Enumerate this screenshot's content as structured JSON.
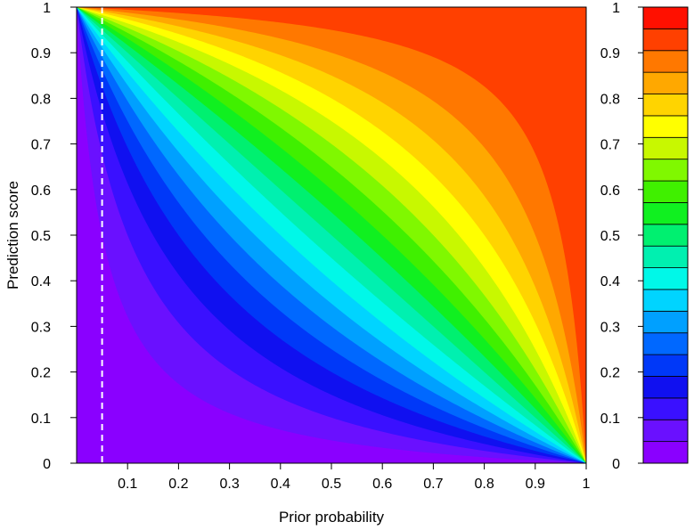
{
  "chart_data": {
    "type": "heatmap",
    "subtype": "filled-contour",
    "xlabel": "Prior probability",
    "ylabel": "Prediction score",
    "xlim": [
      0,
      1
    ],
    "ylim": [
      0,
      1
    ],
    "x_ticks": [
      "0.1",
      "0.2",
      "0.3",
      "0.4",
      "0.5",
      "0.6",
      "0.7",
      "0.8",
      "0.9",
      "1"
    ],
    "y_ticks": [
      "0",
      "0.1",
      "0.2",
      "0.3",
      "0.4",
      "0.5",
      "0.6",
      "0.7",
      "0.8",
      "0.9",
      "1"
    ],
    "reference_line": {
      "style": "dashed",
      "color": "#ffffff",
      "x": 0.05
    },
    "contour_levels": [
      0,
      0.05,
      0.1,
      0.15,
      0.2,
      0.25,
      0.3,
      0.35,
      0.4,
      0.45,
      0.5,
      0.55,
      0.6,
      0.65,
      0.7,
      0.75,
      0.8,
      0.85,
      0.9,
      0.95,
      1
    ],
    "colorbar": {
      "position": "right",
      "ticks": [
        "0",
        "0.1",
        "0.2",
        "0.3",
        "0.4",
        "0.5",
        "0.6",
        "0.7",
        "0.8",
        "0.9",
        "1"
      ],
      "colors": [
        "#8a00ff",
        "#6a10ff",
        "#3a10ff",
        "#1010f0",
        "#0038f8",
        "#0068ff",
        "#00a0ff",
        "#00d4ff",
        "#00f8e8",
        "#00f0b0",
        "#00f070",
        "#10f020",
        "#40f000",
        "#80f800",
        "#c8f800",
        "#ffff00",
        "#ffd400",
        "#ffa800",
        "#ff7800",
        "#ff4000",
        "#ff1000"
      ]
    }
  }
}
